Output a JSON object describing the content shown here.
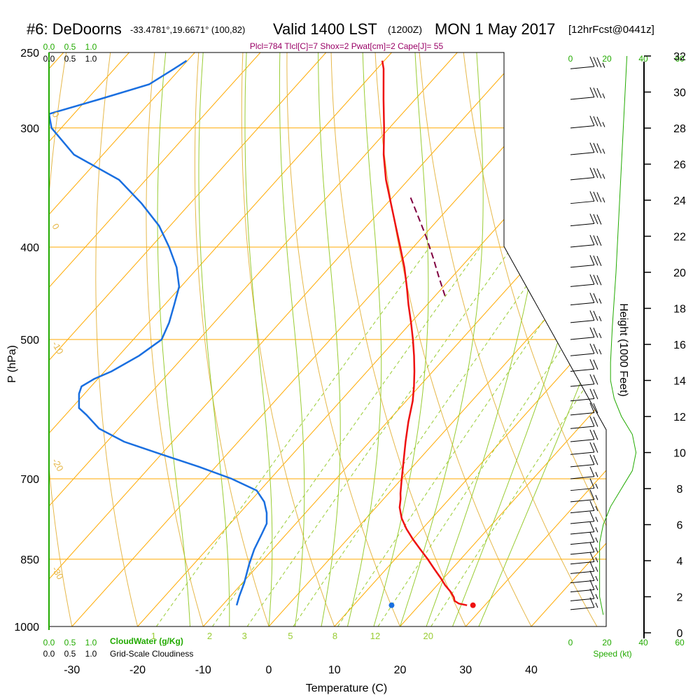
{
  "header": {
    "station": "#6: DeDoorns",
    "location": "-33.4781°,19.6671° (100,82)",
    "valid": "Valid 1400 LST",
    "zulu": "(1200Z)",
    "date": "MON 1 May 2017",
    "forecast": "[12hrFcst@0441z]"
  },
  "params_line": "Plcl=784 Tlcl[C]=7 Shox=2 Pwat[cm]=2 Cape[J]= 55",
  "colors": {
    "isotherm": "#ffaa00",
    "dry_adiabat": "#e6b84a",
    "moist_adiabat": "#99cc33",
    "mixing_ratio": "#99cc33",
    "temperature": "#ee1111",
    "cloud": "#1a6fe0",
    "parcel": "#800040",
    "scale_green": "#22aa00",
    "outline": "#000000"
  },
  "chart_data": {
    "type": "line",
    "title": "",
    "xlabel": "Temperature (C)",
    "ylabel": "P (hPa)",
    "right_ylabel": "Height (1000 Feet)",
    "xlim": [
      -33.5,
      36
    ],
    "ylim": [
      1000,
      250
    ],
    "y_log": true,
    "skew": true,
    "x_ticks": [
      -30,
      -20,
      -10,
      0,
      10,
      20,
      30,
      40
    ],
    "y_ticks": [
      250,
      300,
      400,
      500,
      700,
      850,
      1000
    ],
    "height_ticks": [
      0,
      2,
      4,
      6,
      8,
      10,
      12,
      14,
      16,
      18,
      20,
      22,
      24,
      26,
      28,
      30,
      32
    ],
    "isotherm_grid": [
      -110,
      -100,
      -90,
      -80,
      -70,
      -60,
      -50,
      -40,
      -30,
      -20,
      -10,
      0,
      10,
      20,
      30,
      40
    ],
    "dry_adiabats_theta_C": [
      -30,
      -20,
      -10,
      0,
      10,
      20,
      30,
      40,
      50,
      60,
      70,
      80,
      90,
      100,
      110,
      120,
      130,
      140,
      150,
      160
    ],
    "dry_adiabat_labels": [
      {
        "text": "0",
        "p": 327,
        "t": 36
      },
      {
        "text": "10",
        "p": 412,
        "t": 38
      },
      {
        "text": "20",
        "p": 490,
        "t": 42
      },
      {
        "text": "30",
        "p": 585,
        "t": 43
      }
    ],
    "left_scale_labels": [
      {
        "text": "0",
        "p": 290
      },
      {
        "text": "0",
        "p": 380
      },
      {
        "text": "-10",
        "p": 505
      },
      {
        "text": "-20",
        "p": 670
      },
      {
        "text": "-30",
        "p": 870
      }
    ],
    "moist_adiabats": [
      -12,
      -6,
      0,
      4,
      8,
      12,
      16,
      20,
      24,
      28,
      32
    ],
    "mixing_ratio_lines": [
      "1",
      "2",
      "3",
      "5",
      "8",
      "12",
      "20"
    ],
    "mixing_ratio_values_gkg": [
      1,
      2,
      3,
      5,
      8,
      12,
      20
    ],
    "series": [
      {
        "name": "temperature",
        "p": [
          950,
          946,
          940,
          932,
          920,
          905,
          890,
          870,
          850,
          830,
          810,
          790,
          770,
          750,
          735,
          725,
          700,
          670,
          640,
          610,
          580,
          560,
          540,
          520,
          500,
          480,
          460,
          440,
          420,
          400,
          380,
          360,
          340,
          320,
          300,
          280,
          260,
          255
        ],
        "t": [
          27.3,
          25.8,
          24.8,
          24.2,
          23.0,
          21.2,
          19.6,
          17.3,
          15.0,
          12.5,
          10.0,
          7.6,
          5.4,
          3.6,
          2.6,
          1.8,
          0.0,
          -2.2,
          -4.5,
          -6.8,
          -9.0,
          -10.8,
          -12.8,
          -15.0,
          -17.4,
          -20.0,
          -22.8,
          -25.6,
          -28.6,
          -32.0,
          -35.6,
          -39.4,
          -43.4,
          -47.2,
          -50.8,
          -54.8,
          -59.0,
          -60.3
        ]
      },
      {
        "name": "parcel",
        "p": [
          450,
          430,
          410,
          390,
          370,
          355
        ],
        "t": [
          -18.5,
          -22.0,
          -25.6,
          -29.5,
          -33.8,
          -37.2
        ]
      },
      {
        "name": "cloud-water",
        "p": [
          950,
          930,
          900,
          860,
          830,
          800,
          780,
          760,
          740,
          720,
          700,
          680,
          660,
          640,
          620,
          600,
          590,
          580,
          570,
          560,
          550,
          540,
          520,
          500,
          480,
          460,
          440,
          420,
          400,
          380,
          360,
          340,
          320,
          300,
          290,
          280,
          270,
          260,
          255
        ],
        "x": [
          0.75,
          0.76,
          0.78,
          0.8,
          0.82,
          0.85,
          0.87,
          0.87,
          0.86,
          0.83,
          0.73,
          0.6,
          0.45,
          0.3,
          0.2,
          0.15,
          0.12,
          0.12,
          0.12,
          0.13,
          0.18,
          0.25,
          0.36,
          0.45,
          0.48,
          0.5,
          0.52,
          0.51,
          0.48,
          0.44,
          0.37,
          0.28,
          0.1,
          0.01,
          0.0,
          0.2,
          0.4,
          0.5,
          0.55
        ]
      },
      {
        "name": "speed",
        "height_kft": [
          1,
          2,
          3,
          4,
          5,
          6,
          7,
          8,
          9,
          10,
          11,
          12,
          13,
          14,
          15,
          17,
          20,
          24,
          28,
          30,
          32
        ],
        "speed_kt": [
          18,
          16,
          16,
          16,
          16,
          18,
          22,
          28,
          34,
          36,
          34,
          28,
          24,
          22,
          22,
          23,
          25,
          27,
          29,
          30,
          31
        ]
      }
    ],
    "surface_points": [
      {
        "name": "surface temperature",
        "p": 950,
        "t": 28.2
      },
      {
        "name": "surface cloud",
        "p": 950,
        "t": 15.8
      }
    ],
    "wind_barbs": {
      "p": [
        260,
        280,
        300,
        320,
        340,
        360,
        380,
        400,
        420,
        440,
        460,
        480,
        500,
        520,
        540,
        560,
        580,
        600,
        620,
        640,
        660,
        680,
        700,
        720,
        740,
        760,
        780,
        800,
        820,
        840,
        860,
        880,
        900,
        920,
        940,
        960
      ],
      "speed_kt": [
        35,
        35,
        35,
        35,
        35,
        35,
        30,
        30,
        30,
        30,
        25,
        25,
        25,
        25,
        20,
        20,
        20,
        20,
        20,
        20,
        20,
        20,
        15,
        15,
        15,
        15,
        15,
        15,
        15,
        15,
        15,
        15,
        15,
        15,
        15,
        15
      ],
      "direction_deg": [
        250,
        250,
        250,
        250,
        250,
        250,
        250,
        250,
        250,
        250,
        250,
        250,
        250,
        250,
        250,
        250,
        250,
        250,
        250,
        250,
        250,
        250,
        250,
        250,
        250,
        250,
        250,
        250,
        250,
        250,
        250,
        250,
        250,
        250,
        250,
        250
      ]
    },
    "scales": {
      "top_cloud": [
        "0.0",
        "0.5",
        "1.0"
      ],
      "top_cloud_black": [
        "0.0",
        "0.5",
        "1.0"
      ],
      "bottom_cloud_green": [
        "0.0",
        "0.5",
        "1.0"
      ],
      "bottom_cloud_black": [
        "0.0",
        "0.5",
        "1.0"
      ],
      "speed_ticks": [
        "0",
        "20",
        "40",
        "60"
      ],
      "bottom_cloudwater_label": "CloudWater (g/Kg)",
      "bottom_cloudiness_label": "Grid-Scale Cloudiness",
      "speed_label": "Speed (kt)"
    }
  }
}
